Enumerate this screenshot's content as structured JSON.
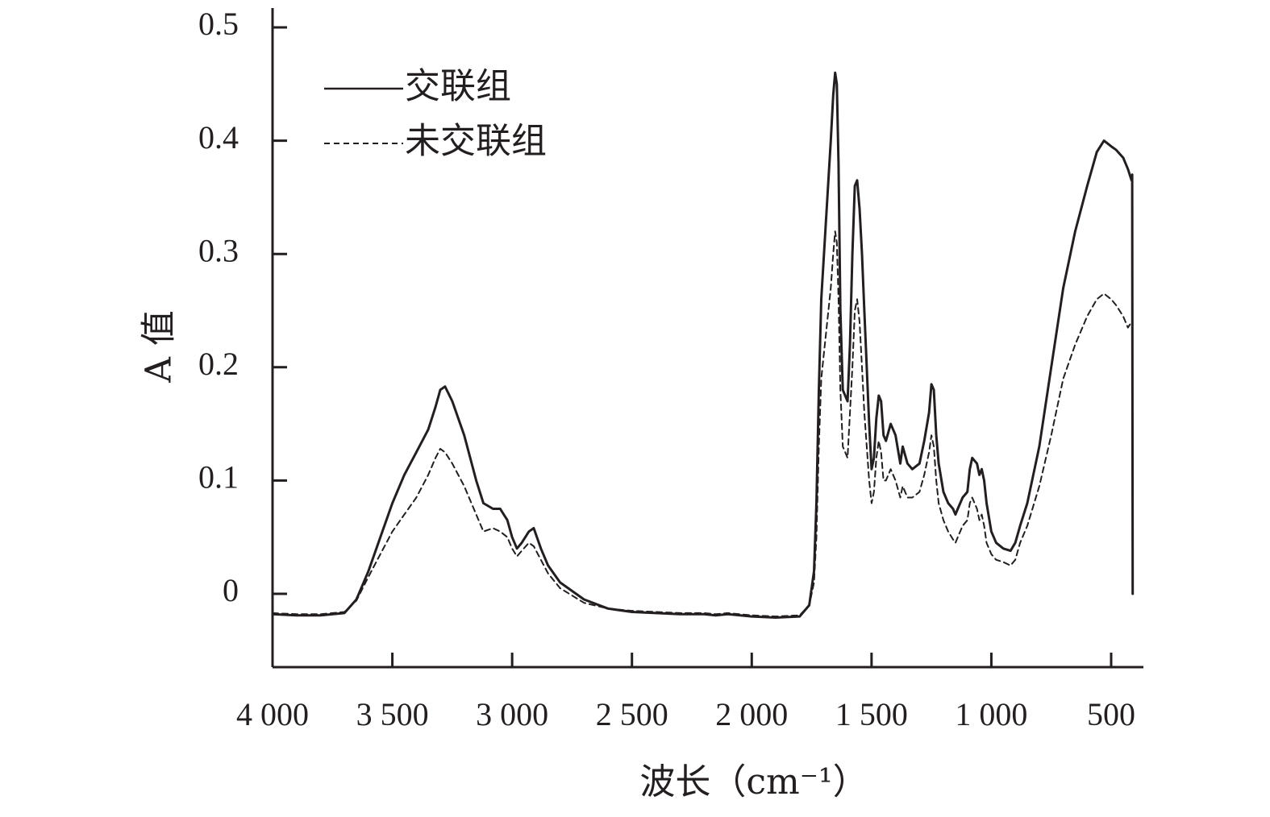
{
  "chart_data": {
    "type": "line",
    "xlabel": "波长（cm⁻¹）",
    "ylabel": "A 值",
    "xlim": [
      4000,
      400
    ],
    "ylim": [
      -0.065,
      0.52
    ],
    "x_reversed": true,
    "x_ticks": [
      4000,
      3500,
      3000,
      2500,
      2000,
      1500,
      1000,
      500
    ],
    "x_tick_labels": [
      "4 000",
      "3 500",
      "3 000",
      "2 500",
      "2 000",
      "1 500",
      "1 000",
      "500"
    ],
    "y_ticks": [
      0,
      0.1,
      0.2,
      0.3,
      0.4,
      0.5
    ],
    "y_tick_labels": [
      "0",
      "0.1",
      "0.2",
      "0.3",
      "0.4",
      "0.5"
    ],
    "grid": false,
    "legend": {
      "position": "top-left"
    },
    "series": [
      {
        "name": "交联组",
        "style": "solid",
        "color": "#231f20",
        "x": [
          4000,
          3900,
          3800,
          3700,
          3650,
          3600,
          3550,
          3500,
          3450,
          3400,
          3350,
          3320,
          3300,
          3280,
          3250,
          3200,
          3150,
          3120,
          3080,
          3050,
          3020,
          3000,
          2980,
          2960,
          2930,
          2910,
          2880,
          2850,
          2800,
          2700,
          2600,
          2500,
          2400,
          2300,
          2200,
          2150,
          2100,
          2000,
          1900,
          1800,
          1760,
          1740,
          1730,
          1720,
          1710,
          1690,
          1670,
          1660,
          1652,
          1645,
          1638,
          1630,
          1620,
          1600,
          1590,
          1580,
          1570,
          1560,
          1550,
          1540,
          1530,
          1520,
          1510,
          1500,
          1490,
          1480,
          1470,
          1460,
          1450,
          1440,
          1420,
          1400,
          1380,
          1370,
          1350,
          1330,
          1300,
          1280,
          1260,
          1250,
          1240,
          1230,
          1220,
          1200,
          1180,
          1160,
          1150,
          1140,
          1120,
          1100,
          1090,
          1080,
          1060,
          1050,
          1040,
          1030,
          1020,
          1000,
          980,
          950,
          920,
          900,
          880,
          850,
          800,
          750,
          700,
          650,
          600,
          560,
          530,
          500,
          480,
          450,
          430,
          415,
          412,
          410
        ],
        "values": [
          -0.018,
          -0.019,
          -0.019,
          -0.017,
          -0.005,
          0.02,
          0.05,
          0.08,
          0.105,
          0.125,
          0.145,
          0.165,
          0.18,
          0.183,
          0.17,
          0.14,
          0.1,
          0.08,
          0.075,
          0.075,
          0.065,
          0.05,
          0.04,
          0.045,
          0.055,
          0.058,
          0.04,
          0.025,
          0.01,
          -0.005,
          -0.013,
          -0.016,
          -0.017,
          -0.018,
          -0.018,
          -0.019,
          -0.018,
          -0.02,
          -0.021,
          -0.02,
          -0.01,
          0.02,
          0.08,
          0.18,
          0.26,
          0.33,
          0.4,
          0.44,
          0.46,
          0.45,
          0.38,
          0.25,
          0.18,
          0.17,
          0.22,
          0.3,
          0.36,
          0.365,
          0.34,
          0.3,
          0.25,
          0.2,
          0.15,
          0.11,
          0.12,
          0.155,
          0.175,
          0.17,
          0.14,
          0.135,
          0.15,
          0.14,
          0.115,
          0.13,
          0.115,
          0.11,
          0.115,
          0.135,
          0.16,
          0.185,
          0.18,
          0.14,
          0.115,
          0.09,
          0.08,
          0.075,
          0.07,
          0.075,
          0.085,
          0.09,
          0.11,
          0.12,
          0.115,
          0.105,
          0.11,
          0.1,
          0.08,
          0.055,
          0.045,
          0.04,
          0.038,
          0.045,
          0.06,
          0.08,
          0.13,
          0.2,
          0.27,
          0.32,
          0.36,
          0.39,
          0.4,
          0.395,
          0.392,
          0.385,
          0.375,
          0.365,
          0.37,
          0.0
        ]
      },
      {
        "name": "未交联组",
        "style": "dashed",
        "color": "#231f20",
        "x": [
          4000,
          3900,
          3800,
          3700,
          3650,
          3600,
          3550,
          3500,
          3450,
          3400,
          3350,
          3320,
          3300,
          3280,
          3250,
          3200,
          3150,
          3120,
          3080,
          3050,
          3020,
          3000,
          2980,
          2960,
          2930,
          2910,
          2880,
          2850,
          2800,
          2700,
          2600,
          2500,
          2400,
          2300,
          2200,
          2150,
          2100,
          2000,
          1900,
          1800,
          1760,
          1740,
          1730,
          1720,
          1710,
          1690,
          1670,
          1660,
          1652,
          1645,
          1638,
          1630,
          1620,
          1600,
          1590,
          1580,
          1570,
          1560,
          1550,
          1540,
          1530,
          1520,
          1510,
          1500,
          1490,
          1480,
          1470,
          1460,
          1450,
          1440,
          1420,
          1400,
          1380,
          1370,
          1350,
          1330,
          1300,
          1280,
          1260,
          1250,
          1240,
          1230,
          1220,
          1200,
          1180,
          1160,
          1150,
          1140,
          1120,
          1100,
          1090,
          1080,
          1060,
          1050,
          1040,
          1030,
          1020,
          1000,
          980,
          950,
          920,
          900,
          880,
          850,
          800,
          750,
          700,
          650,
          600,
          560,
          530,
          500,
          480,
          450,
          430,
          415
        ],
        "values": [
          -0.017,
          -0.018,
          -0.018,
          -0.016,
          -0.006,
          0.015,
          0.035,
          0.055,
          0.07,
          0.085,
          0.105,
          0.12,
          0.128,
          0.125,
          0.115,
          0.095,
          0.07,
          0.055,
          0.058,
          0.055,
          0.05,
          0.04,
          0.033,
          0.038,
          0.045,
          0.042,
          0.03,
          0.018,
          0.005,
          -0.008,
          -0.013,
          -0.015,
          -0.016,
          -0.017,
          -0.017,
          -0.018,
          -0.017,
          -0.019,
          -0.02,
          -0.019,
          -0.01,
          0.01,
          0.05,
          0.13,
          0.19,
          0.23,
          0.27,
          0.3,
          0.32,
          0.31,
          0.26,
          0.18,
          0.13,
          0.12,
          0.16,
          0.2,
          0.25,
          0.26,
          0.24,
          0.2,
          0.16,
          0.13,
          0.1,
          0.08,
          0.09,
          0.12,
          0.135,
          0.125,
          0.1,
          0.1,
          0.11,
          0.1,
          0.085,
          0.095,
          0.085,
          0.085,
          0.09,
          0.105,
          0.125,
          0.14,
          0.13,
          0.1,
          0.08,
          0.065,
          0.055,
          0.048,
          0.045,
          0.05,
          0.06,
          0.065,
          0.08,
          0.085,
          0.075,
          0.065,
          0.07,
          0.06,
          0.045,
          0.035,
          0.03,
          0.028,
          0.025,
          0.03,
          0.045,
          0.06,
          0.095,
          0.14,
          0.19,
          0.22,
          0.245,
          0.26,
          0.265,
          0.26,
          0.255,
          0.245,
          0.235,
          0.24
        ]
      }
    ]
  }
}
